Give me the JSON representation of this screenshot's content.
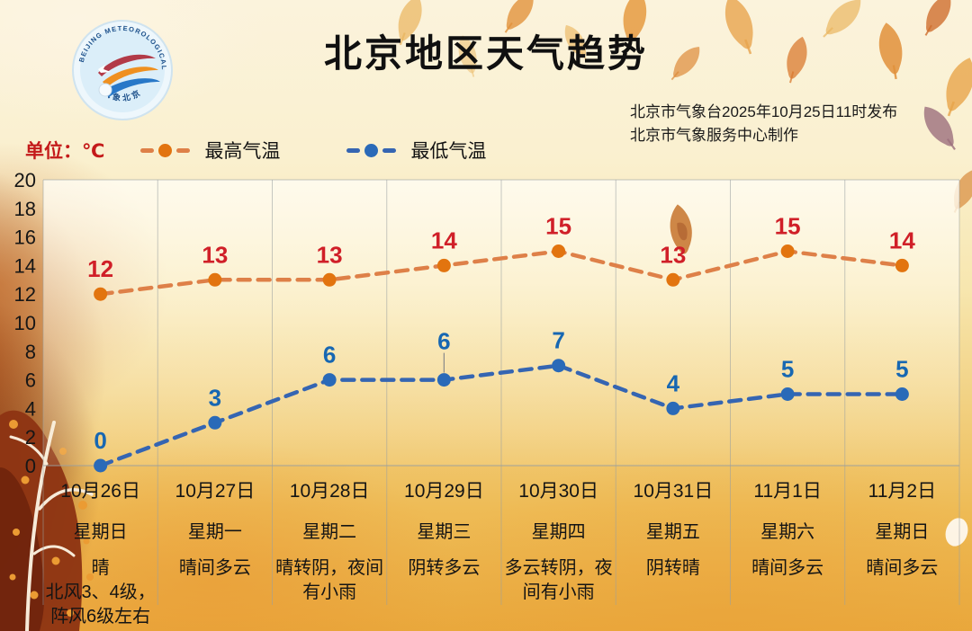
{
  "header": {
    "title": "北京地区天气趋势",
    "issued_line1": "北京市气象台2025年10月25日11时发布",
    "issued_line2": "北京市气象服务中心制作",
    "logo": {
      "ring_text_top": "BEIJING METEOROLOGICAL SERVICE",
      "ring_text_bottom": "气象北京"
    }
  },
  "legend": {
    "unit_label": "单位：℃",
    "unit_color": "#c41a1a"
  },
  "chart_data": {
    "type": "line",
    "title": "北京地区天气趋势",
    "unit": "℃",
    "ylim": [
      0,
      20
    ],
    "yticks": [
      0,
      2,
      4,
      6,
      8,
      10,
      12,
      14,
      16,
      18,
      20
    ],
    "grid": "vertical column dividers only, no horizontal gridlines",
    "legend_position": "top-left",
    "categories": [
      "10月26日",
      "10月27日",
      "10月28日",
      "10月29日",
      "10月30日",
      "10月31日",
      "11月1日",
      "11月2日"
    ],
    "series": [
      {
        "name": "最高气温",
        "values": [
          12,
          13,
          13,
          14,
          15,
          13,
          15,
          14
        ],
        "line_color": "#de8048",
        "dot_color": "#e2740f",
        "label_color": "#d01f28",
        "style": "dashed-with-dots"
      },
      {
        "name": "最低气温",
        "values": [
          0,
          3,
          6,
          6,
          7,
          4,
          5,
          5
        ],
        "line_color": "#3565b2",
        "dot_color": "#2a6ab8",
        "label_color": "#1767b2",
        "style": "dashed-with-dots",
        "label_leader_indexes": [
          3
        ]
      }
    ],
    "days": [
      {
        "date": "10月26日",
        "weekday": "星期日",
        "weather": "晴\n北风3、4级，\n阵风6级左右"
      },
      {
        "date": "10月27日",
        "weekday": "星期一",
        "weather": "晴间多云"
      },
      {
        "date": "10月28日",
        "weekday": "星期二",
        "weather": "晴转阴，夜间\n有小雨"
      },
      {
        "date": "10月29日",
        "weekday": "星期三",
        "weather": "阴转多云"
      },
      {
        "date": "10月30日",
        "weekday": "星期四",
        "weather": "多云转阴，夜\n间有小雨"
      },
      {
        "date": "10月31日",
        "weekday": "星期五",
        "weather": "阴转晴"
      },
      {
        "date": "11月1日",
        "weekday": "星期六",
        "weather": "晴间多云"
      },
      {
        "date": "11月2日",
        "weekday": "星期日",
        "weather": "晴间多云"
      }
    ]
  }
}
